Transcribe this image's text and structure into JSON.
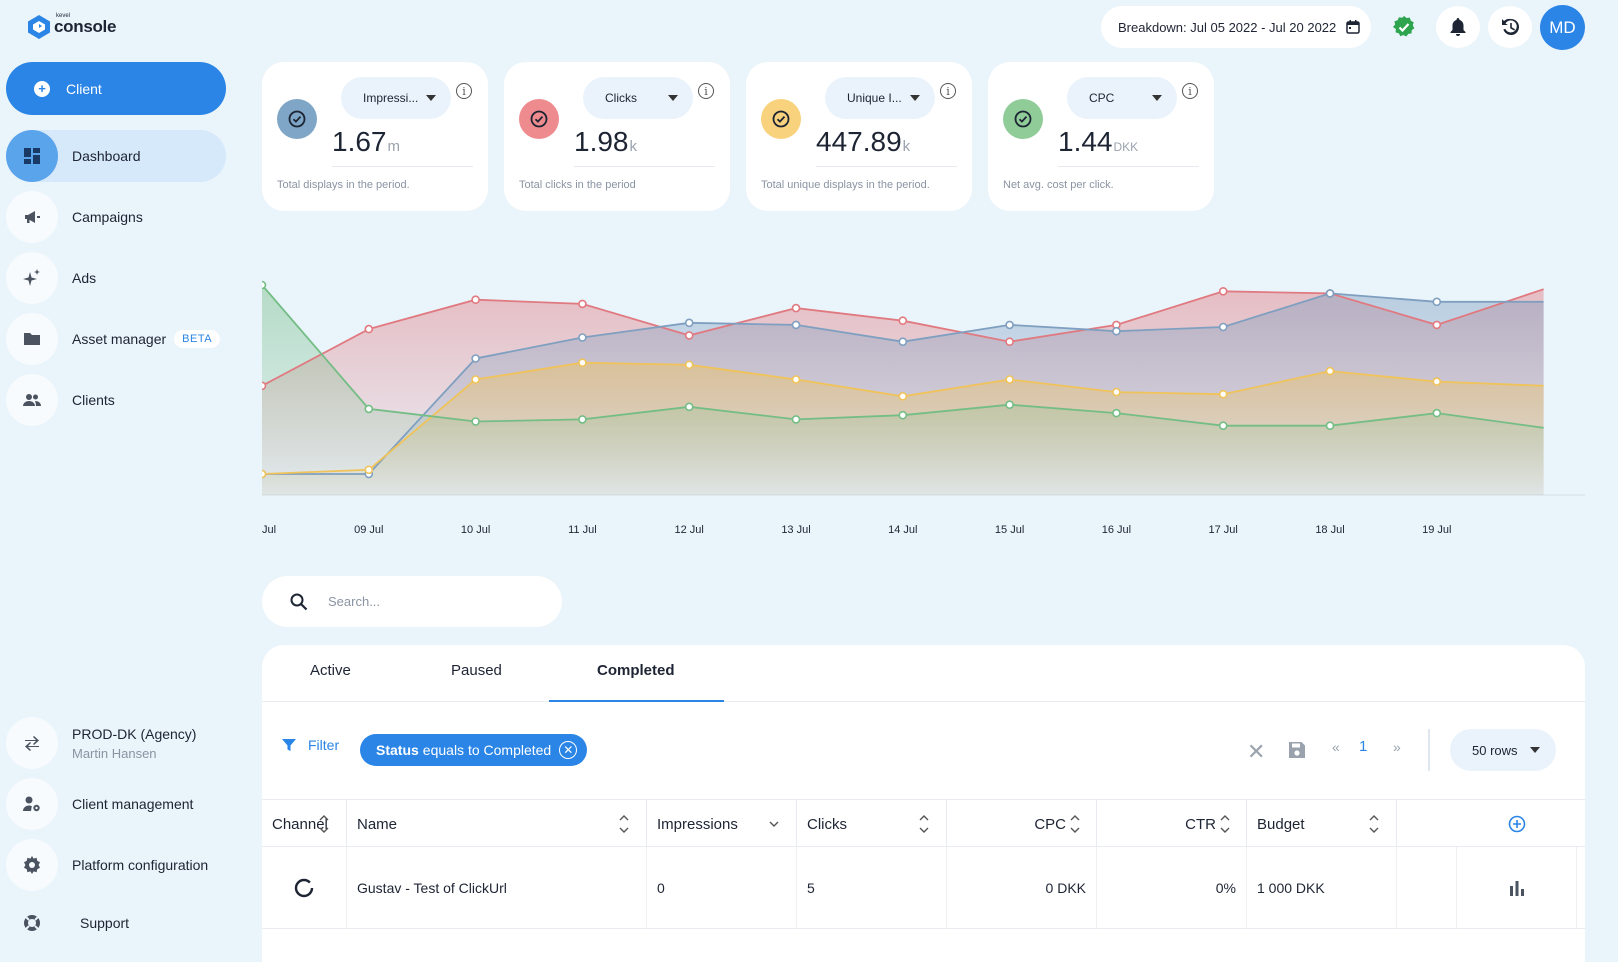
{
  "app": {
    "logo_small": "kevel",
    "logo_text": "console"
  },
  "sidebar": {
    "client_button": "Client",
    "items": [
      {
        "label": "Dashboard",
        "icon": "dashboard-icon",
        "active": true
      },
      {
        "label": "Campaigns",
        "icon": "megaphone-icon"
      },
      {
        "label": "Ads",
        "icon": "sparkle-icon"
      },
      {
        "label": "Asset manager",
        "icon": "folder-icon",
        "badge": "BETA"
      },
      {
        "label": "Clients",
        "icon": "people-icon"
      }
    ],
    "account": {
      "name": "PROD-DK (Agency)",
      "user": "Martin Hansen",
      "icon": "swap-icon"
    },
    "bottom": [
      {
        "label": "Client management",
        "icon": "person-gear-icon"
      },
      {
        "label": "Platform configuration",
        "icon": "gear-icon"
      },
      {
        "label": "Support",
        "icon": "lifebuoy-icon"
      }
    ]
  },
  "topbar": {
    "breakdown": "Breakdown: Jul 05 2022 - Jul 20 2022",
    "avatar": "MD",
    "status_color": "#2ea44f"
  },
  "metrics": [
    {
      "select": "Impressi...",
      "value": "1.67",
      "unit": "m",
      "desc": "Total displays in the period.",
      "color": "#7fa6c6"
    },
    {
      "select": "Clicks",
      "value": "1.98",
      "unit": "k",
      "desc": "Total clicks in the period",
      "color": "#ee8b8f"
    },
    {
      "select": "Unique I...",
      "value": "447.89",
      "unit": "k",
      "desc": "Total unique displays in the period.",
      "color": "#f8d27c"
    },
    {
      "select": "CPC",
      "value": "1.44",
      "unit": "DKK",
      "desc": "Net avg. cost per click.",
      "color": "#8fcc98"
    }
  ],
  "chart_data": {
    "type": "area",
    "categories": [
      "Jul",
      "09 Jul",
      "10 Jul",
      "11 Jul",
      "12 Jul",
      "13 Jul",
      "14 Jul",
      "15 Jul",
      "16 Jul",
      "17 Jul",
      "18 Jul",
      "19 Jul",
      ""
    ],
    "ylim": [
      0,
      100
    ],
    "series": [
      {
        "color": "#e07a80",
        "values": [
          52,
          79,
          93,
          91,
          76,
          89,
          83,
          73,
          81,
          97,
          96,
          81,
          98
        ]
      },
      {
        "color": "#7f9fc0",
        "values": [
          10,
          10,
          65,
          75,
          82,
          81,
          73,
          81,
          78,
          80,
          96,
          92,
          92
        ]
      },
      {
        "color": "#f0c35a",
        "values": [
          10,
          12,
          55,
          63,
          62,
          55,
          47,
          55,
          49,
          48,
          59,
          54,
          52
        ]
      },
      {
        "color": "#74bd85",
        "values": [
          100,
          41,
          35,
          36,
          42,
          36,
          38,
          43,
          39,
          33,
          33,
          39,
          32
        ]
      }
    ]
  },
  "search": {
    "placeholder": "Search..."
  },
  "tabs": [
    "Active",
    "Paused",
    "Completed"
  ],
  "filter": {
    "label": "Filter",
    "chip_bold": "Status",
    "chip_rest": "equals to Completed"
  },
  "pagination": {
    "prev": "«",
    "page": "1",
    "next": "»",
    "rows": "50 rows"
  },
  "table": {
    "columns": [
      "Channel",
      "Name",
      "Impressions",
      "Clicks",
      "CPC",
      "CTR",
      "Budget"
    ],
    "rows": [
      {
        "name": "Gustav - Test of ClickUrl",
        "impressions": "0",
        "clicks": "5",
        "cpc": "0 DKK",
        "ctr": "0%",
        "budget": "1 000 DKK"
      }
    ]
  }
}
